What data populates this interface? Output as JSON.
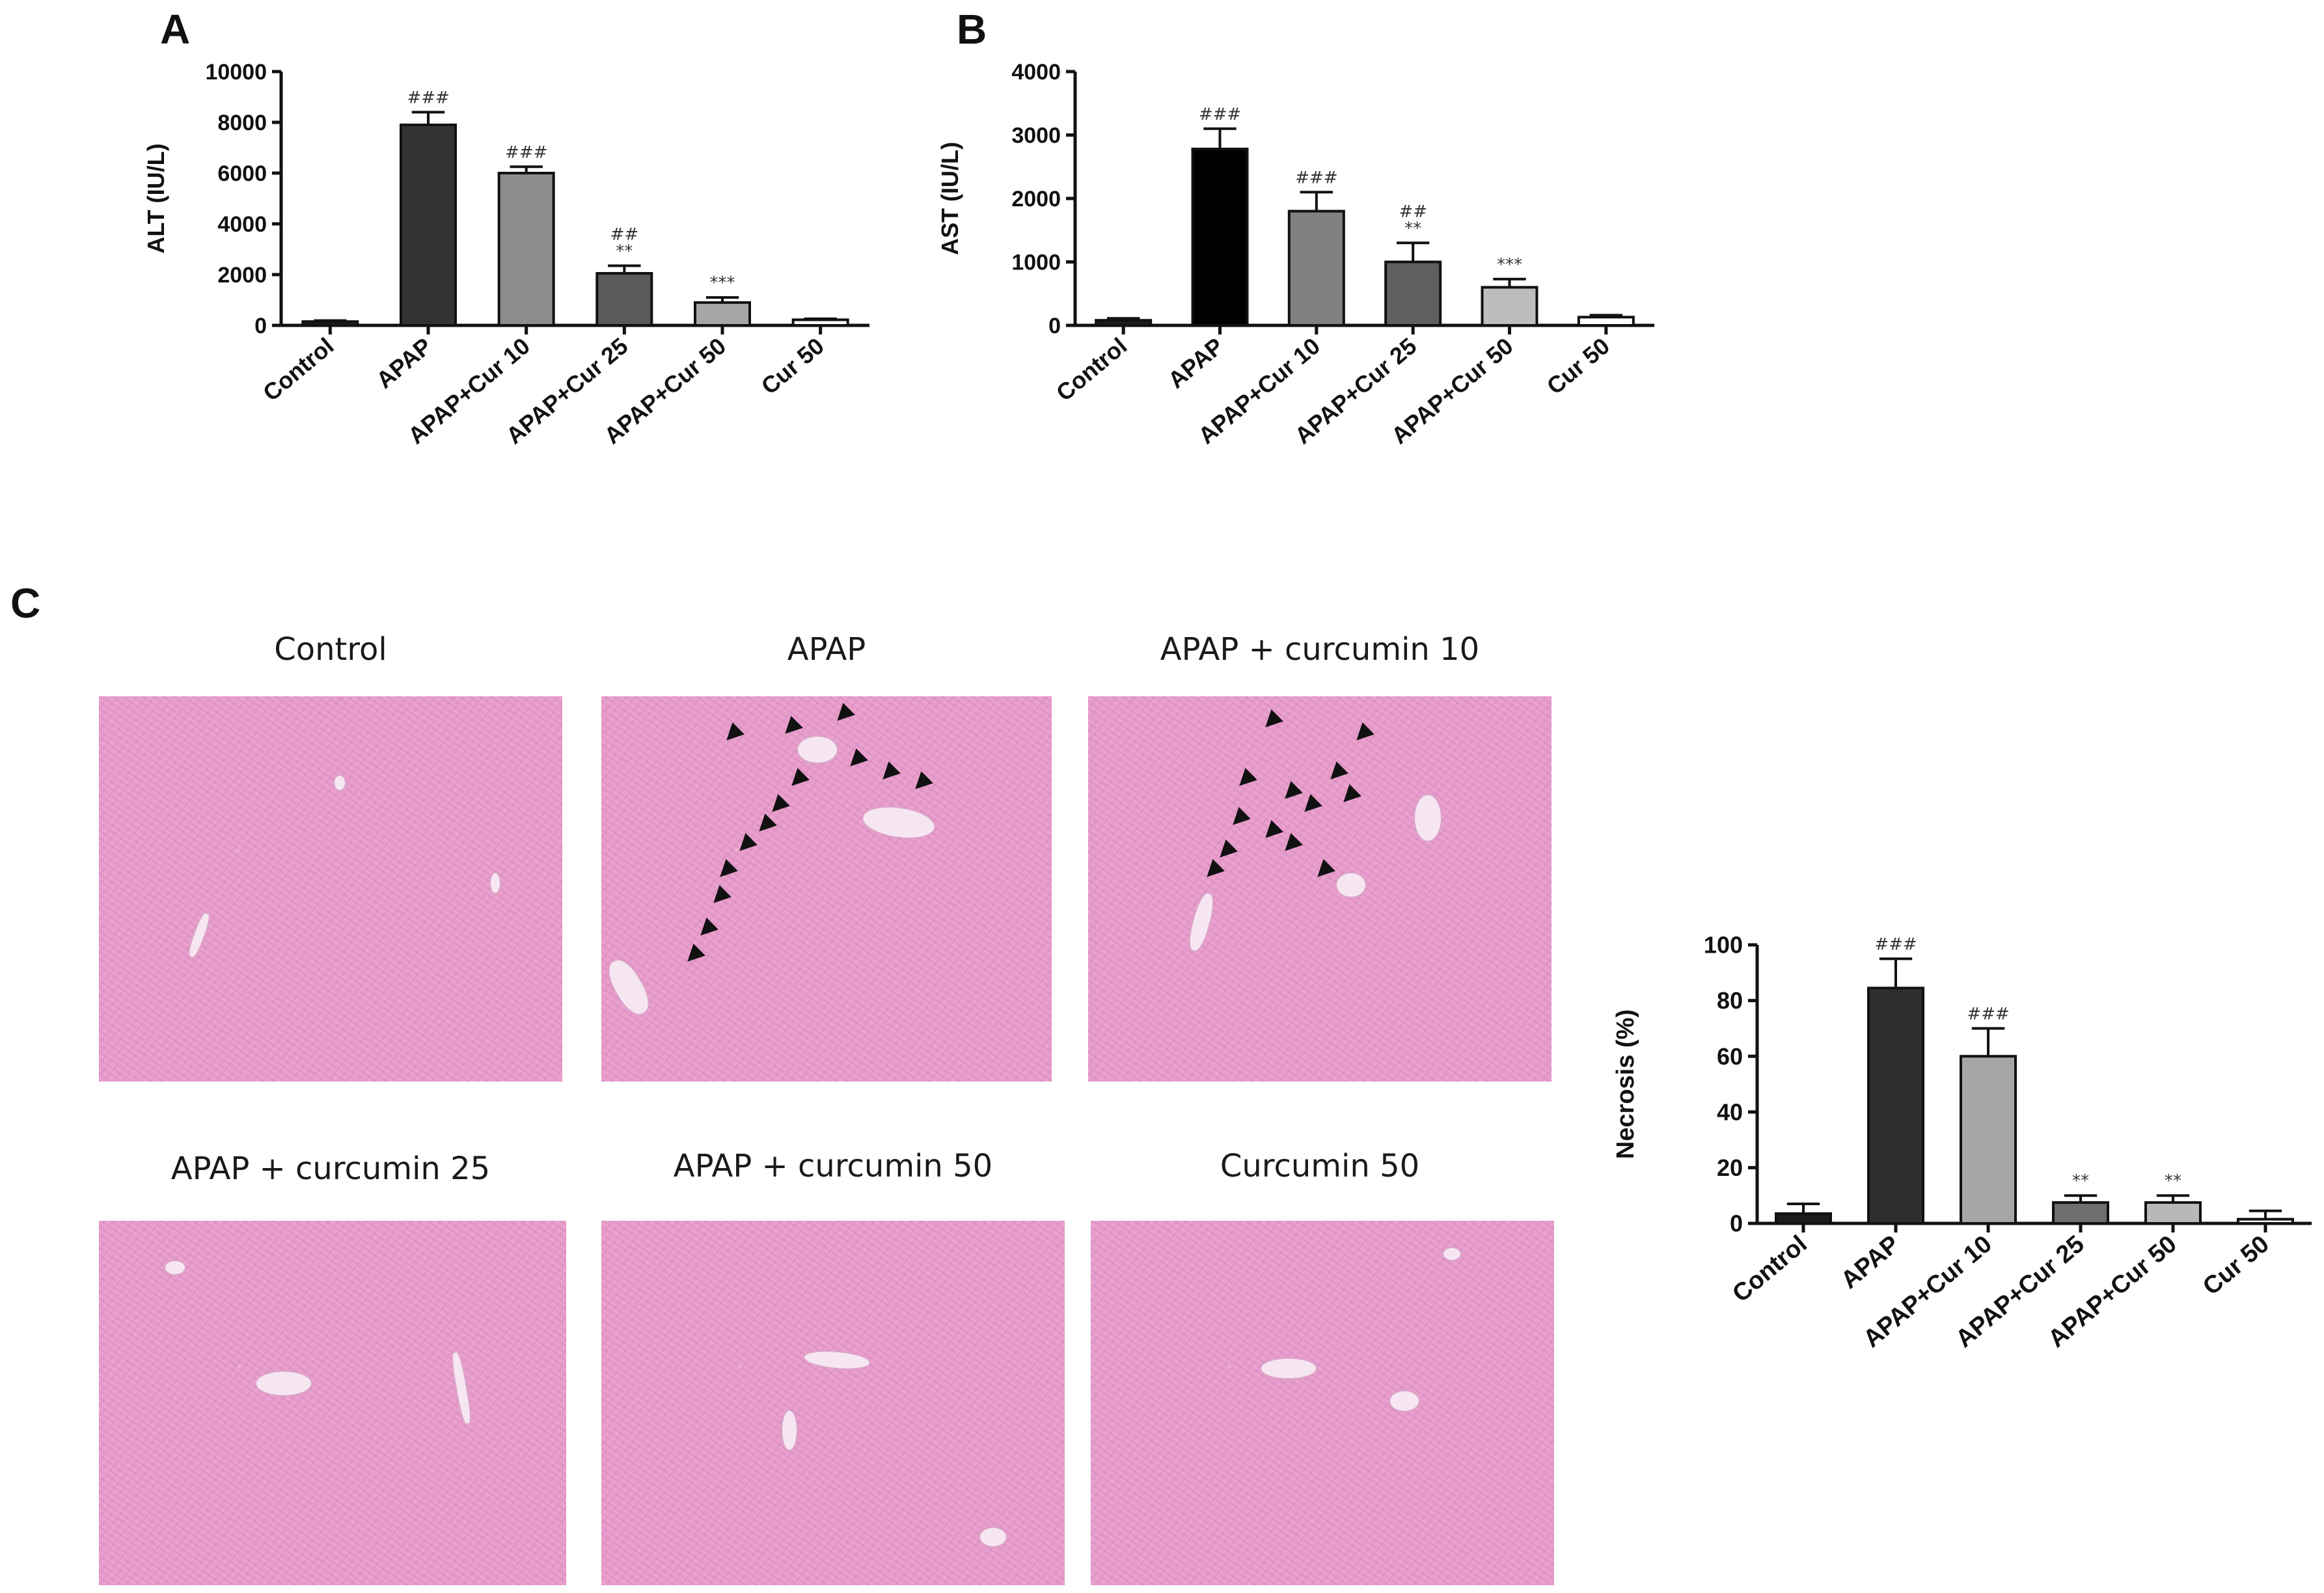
{
  "panels": {
    "a_label": "A",
    "b_label": "B",
    "c_label": "C"
  },
  "chart_data": [
    {
      "id": "A",
      "type": "bar",
      "categories": [
        "Control",
        "APAP",
        "APAP+Cur 10",
        "APAP+Cur 25",
        "APAP+Cur 50",
        "Cur 50"
      ],
      "values": [
        150,
        7900,
        6000,
        2050,
        900,
        220
      ],
      "errors": [
        40,
        500,
        250,
        300,
        200,
        40
      ],
      "annotations": [
        "",
        "###",
        "###",
        "##\n**",
        "***",
        ""
      ],
      "colors": [
        "#1c1c1c",
        "#333333",
        "#8c8c8c",
        "#5a5a5a",
        "#a6a6a6",
        "#ffffff"
      ],
      "ylabel": "ALT (IU/L)",
      "xlabel": "",
      "title": "",
      "ylim": [
        0,
        10000
      ],
      "yticks": [
        0,
        2000,
        4000,
        6000,
        8000,
        10000
      ],
      "grid": false
    },
    {
      "id": "B",
      "type": "bar",
      "categories": [
        "Control",
        "APAP",
        "APAP+Cur 10",
        "APAP+Cur 25",
        "APAP+Cur 50",
        "Cur 50"
      ],
      "values": [
        80,
        2780,
        1800,
        1000,
        600,
        130
      ],
      "errors": [
        30,
        320,
        300,
        300,
        130,
        30
      ],
      "annotations": [
        "",
        "###",
        "###",
        "##\n**",
        "***",
        ""
      ],
      "colors": [
        "#1c1c1c",
        "#000000",
        "#808080",
        "#606060",
        "#bdbdbd",
        "#ffffff"
      ],
      "ylabel": "AST (IU/L)",
      "xlabel": "",
      "title": "",
      "ylim": [
        0,
        4000
      ],
      "yticks": [
        0,
        1000,
        2000,
        3000,
        4000
      ],
      "grid": false
    },
    {
      "id": "C",
      "type": "bar",
      "categories": [
        "Control",
        "APAP",
        "APAP+Cur 10",
        "APAP+Cur 25",
        "APAP+Cur 50",
        "Cur 50"
      ],
      "values": [
        3.5,
        84.5,
        60,
        7.5,
        7.5,
        1.5
      ],
      "errors": [
        3.5,
        10.5,
        10,
        2.5,
        2.5,
        3
      ],
      "annotations": [
        "",
        "###",
        "###",
        "**",
        "**",
        ""
      ],
      "colors": [
        "#1c1c1c",
        "#2e2e2e",
        "#a6a6a6",
        "#6e6e6e",
        "#b8b8b8",
        "#ffffff"
      ],
      "ylabel": "Necrosis (%)",
      "xlabel": "",
      "title": "",
      "ylim": [
        0,
        100
      ],
      "yticks": [
        0,
        20,
        40,
        60,
        80,
        100
      ],
      "grid": false
    }
  ],
  "micrographs": [
    {
      "title": "Control",
      "arrows": 0
    },
    {
      "title": "APAP",
      "arrows": 14
    },
    {
      "title": "APAP + curcumin 10",
      "arrows": 13
    },
    {
      "title": "APAP + curcumin 25",
      "arrows": 0
    },
    {
      "title": "APAP + curcumin 50",
      "arrows": 0
    },
    {
      "title": "Curcumin 50",
      "arrows": 0
    }
  ]
}
